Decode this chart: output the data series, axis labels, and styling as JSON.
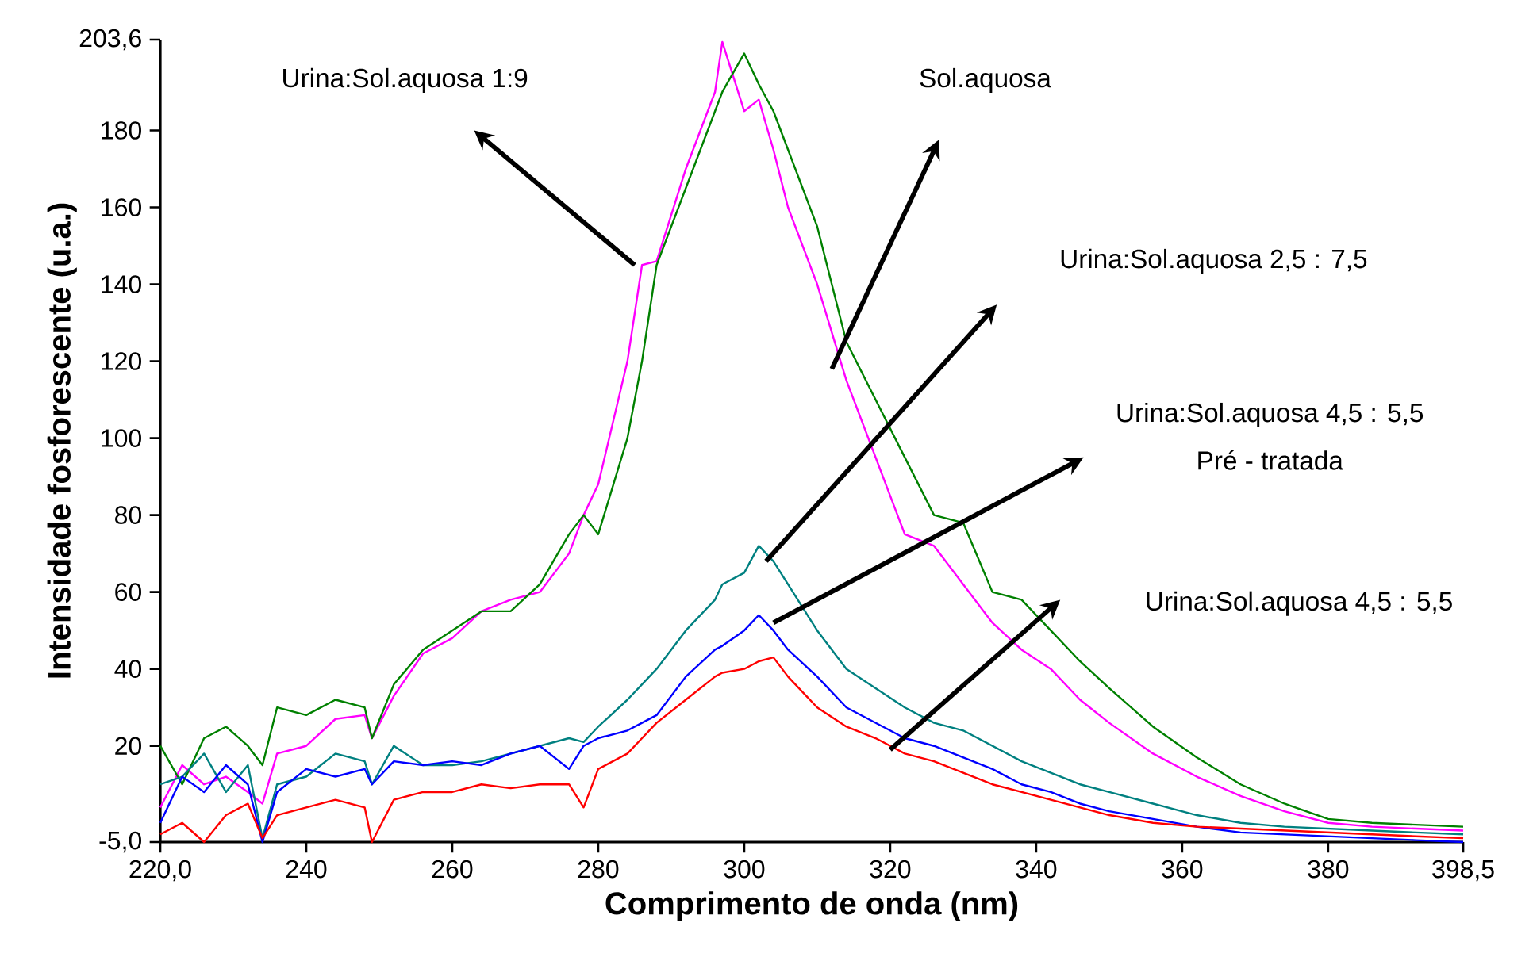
{
  "chart_data": {
    "type": "line",
    "xlabel": "Comprimento de onda (nm)",
    "ylabel": "Intensidade fosforescente (u.a.)",
    "xlim": [
      220.0,
      398.5
    ],
    "ylim": [
      -5.0,
      203.6
    ],
    "xticks": [
      {
        "value": 220.0,
        "label": "220,0"
      },
      240,
      260,
      280,
      300,
      320,
      340,
      360,
      380,
      {
        "value": 398.5,
        "label": "398,5"
      }
    ],
    "yticks": [
      {
        "value": -5.0,
        "label": "-5,0"
      },
      20,
      40,
      60,
      80,
      100,
      120,
      140,
      160,
      180,
      {
        "value": 203.6,
        "label": "203,6"
      }
    ],
    "marker": "none",
    "x": [
      220,
      223,
      226,
      229,
      232,
      234,
      236,
      240,
      244,
      248,
      249,
      252,
      256,
      260,
      264,
      268,
      272,
      276,
      278,
      280,
      284,
      286,
      288,
      292,
      296,
      297,
      300,
      302,
      304,
      306,
      310,
      314,
      318,
      322,
      326,
      330,
      334,
      338,
      342,
      346,
      350,
      356,
      362,
      368,
      374,
      380,
      386,
      392,
      398.5
    ],
    "series": [
      {
        "color": "#ff00ff",
        "values": [
          4,
          15,
          10,
          12,
          8,
          5,
          18,
          20,
          27,
          28,
          22,
          33,
          44,
          48,
          55,
          58,
          60,
          70,
          80,
          88,
          120,
          145,
          146,
          170,
          190,
          203,
          185,
          188,
          175,
          160,
          140,
          115,
          95,
          75,
          72,
          62,
          52,
          45,
          40,
          32,
          26,
          18,
          12,
          7,
          3,
          0,
          -1,
          -1.5,
          -2
        ]
      },
      {
        "color": "#008000",
        "values": [
          20,
          10,
          22,
          25,
          20,
          15,
          30,
          28,
          32,
          30,
          22,
          36,
          45,
          50,
          55,
          55,
          62,
          75,
          80,
          75,
          100,
          120,
          145,
          165,
          185,
          190,
          200,
          192,
          185,
          175,
          155,
          125,
          110,
          95,
          80,
          78,
          60,
          58,
          50,
          42,
          35,
          25,
          17,
          10,
          5,
          1,
          0,
          -0.5,
          -1
        ]
      },
      {
        "color": "#008080",
        "values": [
          10,
          12,
          18,
          8,
          15,
          -4,
          10,
          12,
          18,
          16,
          10,
          20,
          15,
          15,
          16,
          18,
          20,
          22,
          21,
          25,
          32,
          36,
          40,
          50,
          58,
          62,
          65,
          72,
          68,
          62,
          50,
          40,
          35,
          30,
          26,
          24,
          20,
          16,
          13,
          10,
          8,
          5,
          2,
          0,
          -1,
          -1.5,
          -2,
          -2.5,
          -3
        ]
      },
      {
        "color": "#0000ff",
        "values": [
          0,
          12,
          8,
          15,
          10,
          -5,
          8,
          14,
          12,
          14,
          10,
          16,
          15,
          16,
          15,
          18,
          20,
          14,
          20,
          22,
          24,
          26,
          28,
          38,
          45,
          46,
          50,
          54,
          50,
          45,
          38,
          30,
          26,
          22,
          20,
          17,
          14,
          10,
          8,
          5,
          3,
          1,
          -1,
          -2.5,
          -3,
          -3.5,
          -4,
          -4.5,
          -5
        ]
      },
      {
        "color": "#ff0000",
        "values": [
          -3,
          0,
          -5,
          2,
          5,
          -4,
          2,
          4,
          6,
          4,
          -5,
          6,
          8,
          8,
          10,
          9,
          10,
          10,
          4,
          14,
          18,
          22,
          26,
          32,
          38,
          39,
          40,
          42,
          43,
          38,
          30,
          25,
          22,
          18,
          16,
          13,
          10,
          8,
          6,
          4,
          2,
          0,
          -1,
          -1.5,
          -2,
          -2.5,
          -3,
          -3.5,
          -4
        ]
      }
    ],
    "annotations": [
      "Urina:Sol.aquosa 1:9",
      "Sol.aquosa",
      "Urina:Sol.aquosa 2,5 : 7,5",
      "Urina:Sol.aquosa 4,5 : 5,5",
      "Pré - tratada",
      "Urina:Sol.aquosa 4,5 : 5,5"
    ]
  }
}
